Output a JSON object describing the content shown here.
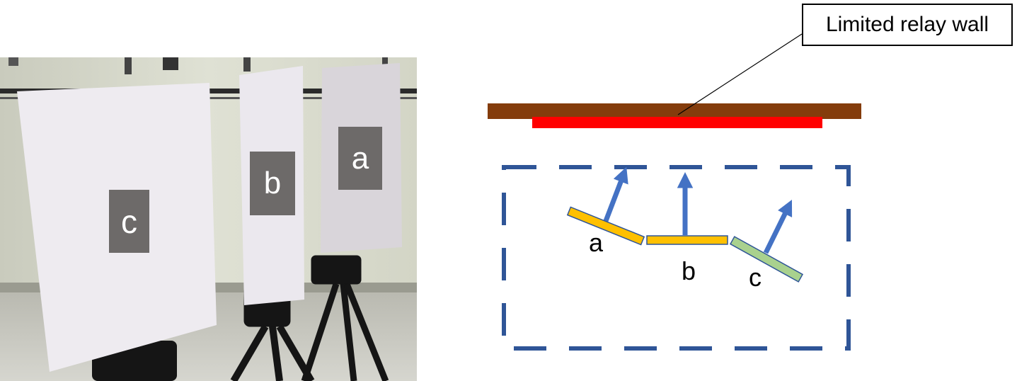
{
  "photo": {
    "panel_labels": {
      "a": "a",
      "b": "b",
      "c": "c"
    }
  },
  "schematic": {
    "callout_text": "Limited relay wall",
    "panel_labels": {
      "a": "a",
      "b": "b",
      "c": "c"
    },
    "colors": {
      "wall": "#843c0c",
      "relay_strip": "#ff0000",
      "boundary_dash": "#2f5597",
      "arrow": "#4472c4",
      "panel_yellow": "#ffc000",
      "panel_green": "#a9d18e",
      "panel_outline": "#2f5597"
    }
  }
}
